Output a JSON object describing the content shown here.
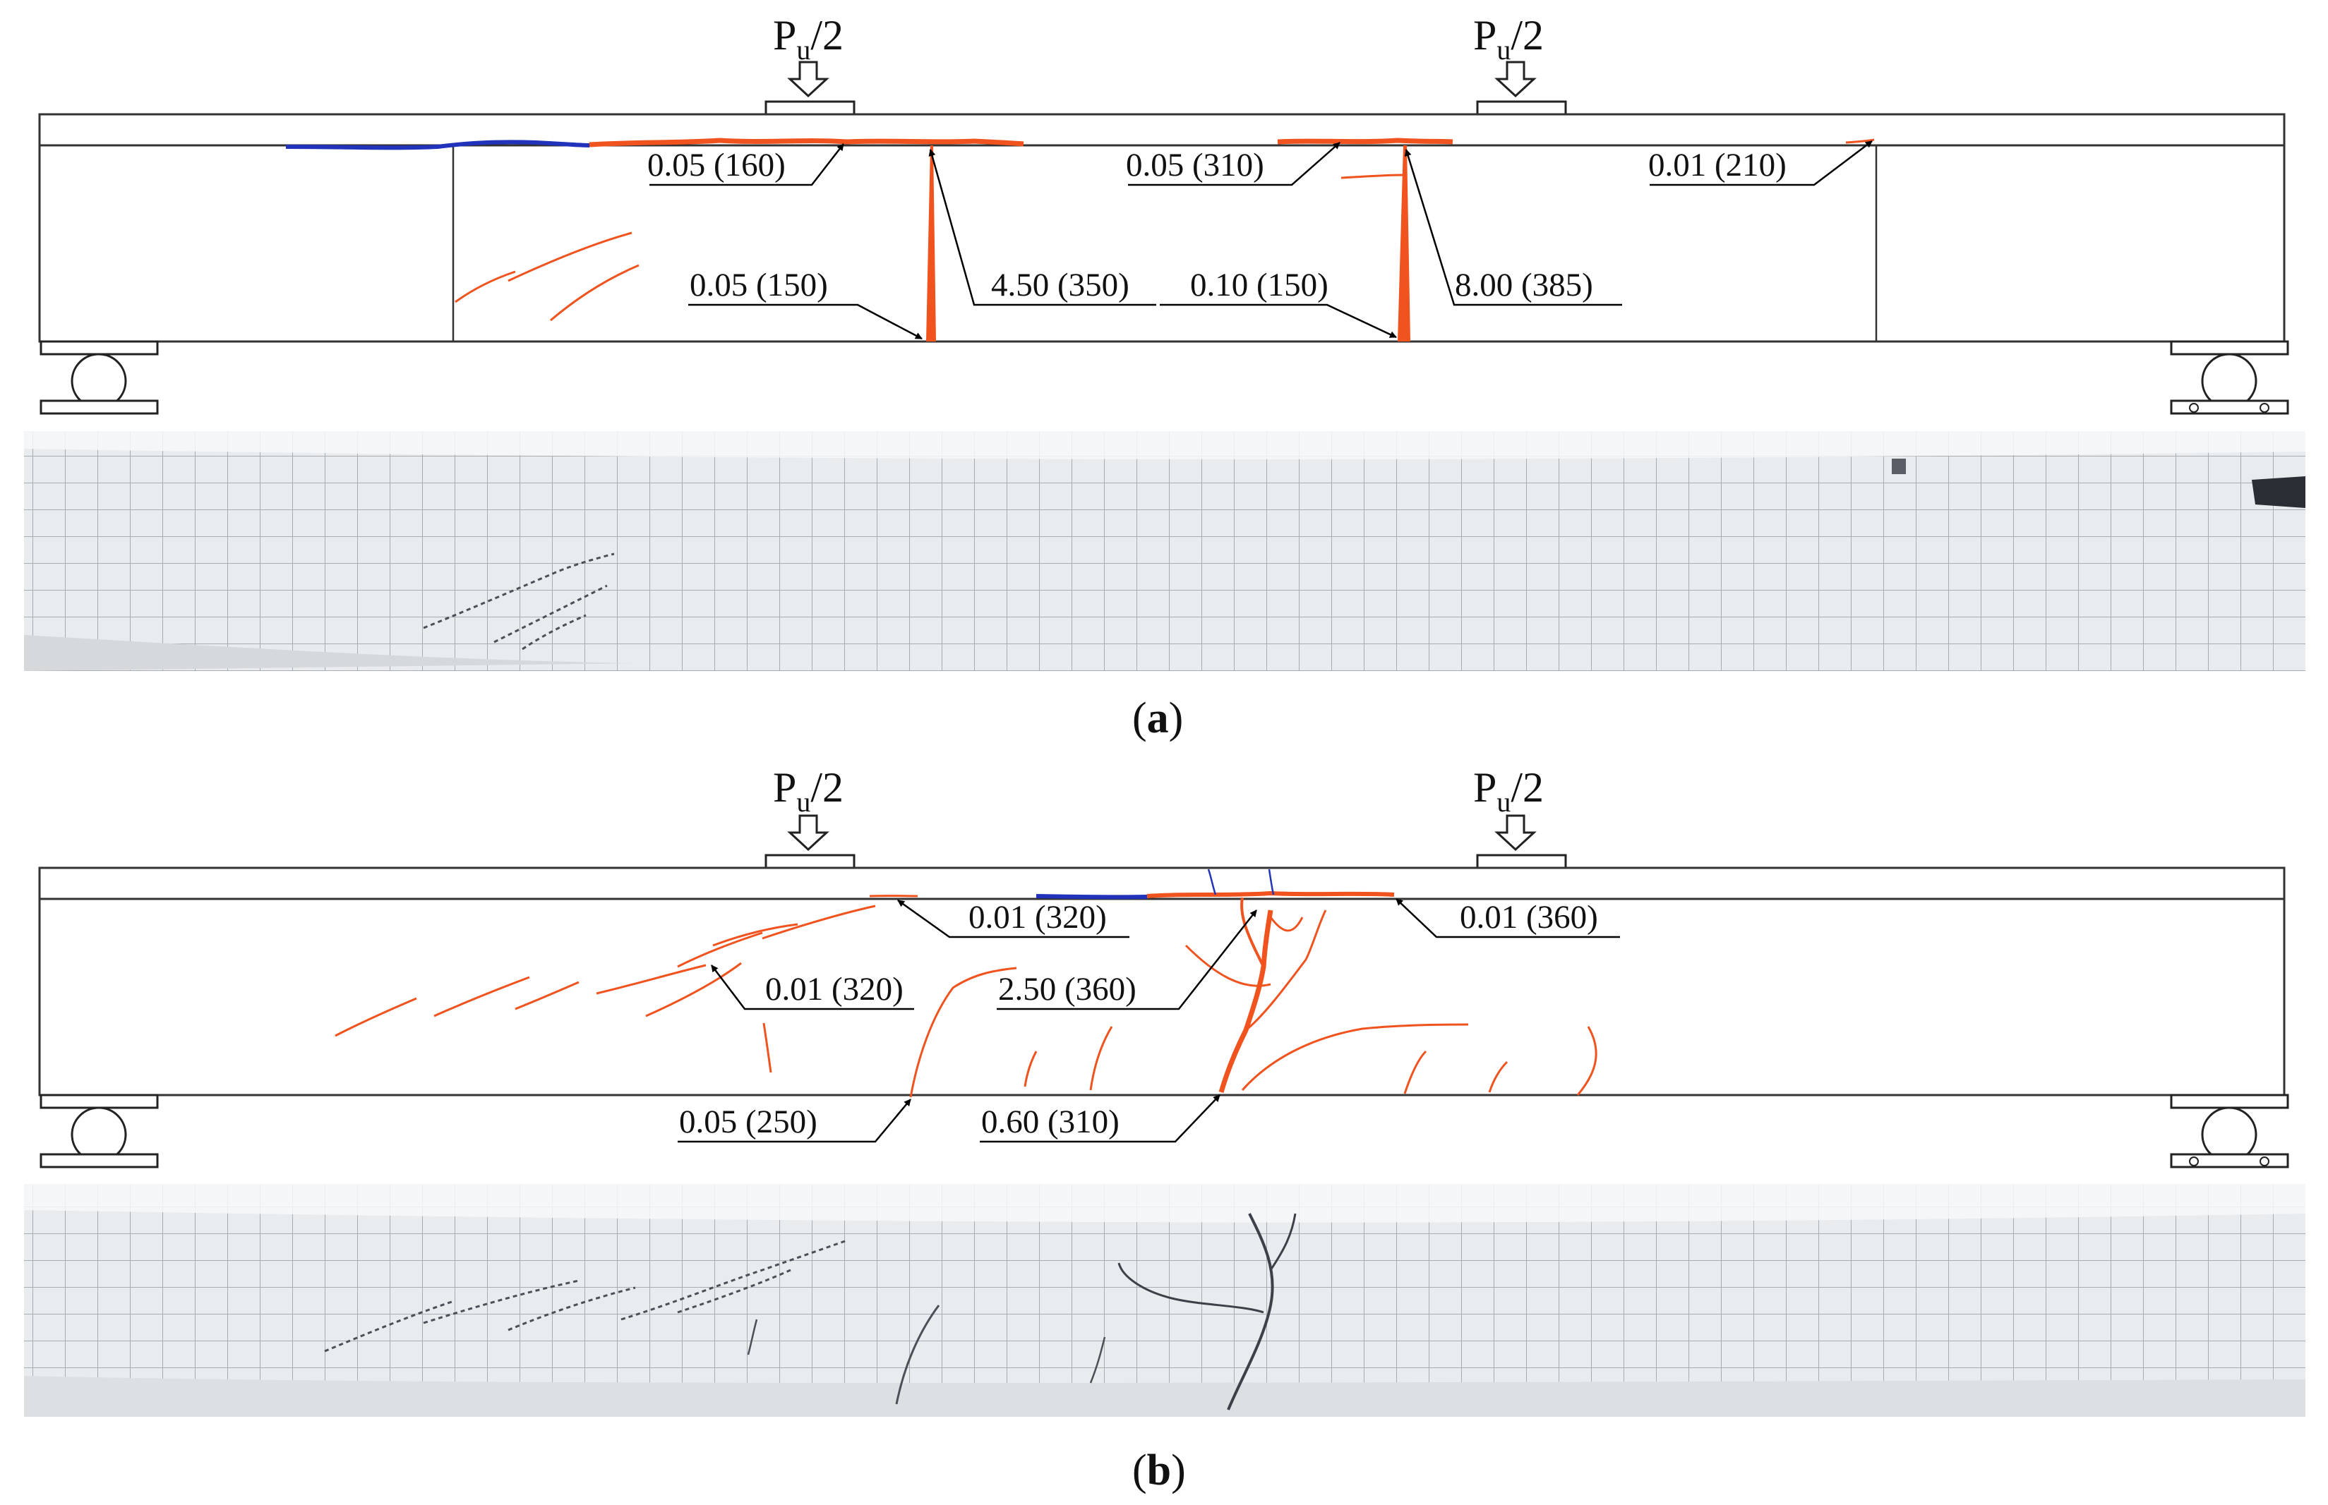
{
  "panels": [
    {
      "id": "a",
      "caption_open": "(",
      "caption_letter": "a",
      "caption_close": ")",
      "load_left": {
        "base": "P",
        "sub": "u",
        "tail": "/2"
      },
      "load_right": {
        "base": "P",
        "sub": "u",
        "tail": "/2"
      },
      "labels": [
        "0.05 (160)",
        "0.05 (310)",
        "0.01 (210)",
        "0.05 (150)",
        "4.50 (350)",
        "0.10 (150)",
        "8.00 (385)"
      ]
    },
    {
      "id": "b",
      "caption_open": "(",
      "caption_letter": "b",
      "caption_close": ")",
      "load_left": {
        "base": "P",
        "sub": "u",
        "tail": "/2"
      },
      "load_right": {
        "base": "P",
        "sub": "u",
        "tail": "/2"
      },
      "labels": [
        "0.01 (320)",
        "0.01 (360)",
        "0.01 (320)",
        "2.50 (360)",
        "0.05 (250)",
        "0.60 (310)"
      ]
    }
  ],
  "colors": {
    "flexural_crack": "#f0531e",
    "crushing_zone": "#2233bb",
    "outline": "#333333",
    "photo_surface": "#e9ecee",
    "photo_grid": "#a8adb2"
  }
}
